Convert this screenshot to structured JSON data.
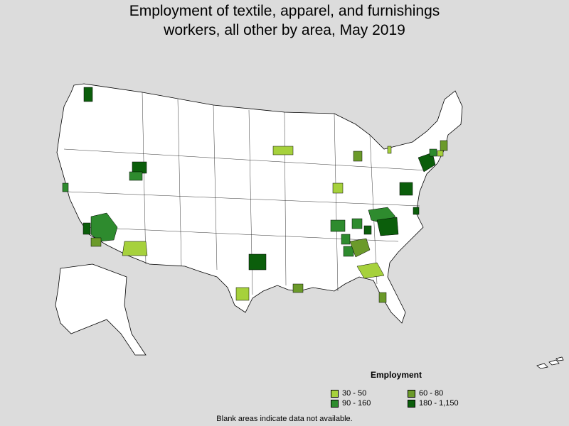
{
  "title_line1": "Employment of textile, apparel, and furnishings",
  "title_line2": "workers, all other by area, May 2019",
  "legend": {
    "title": "Employment",
    "items": [
      {
        "label": "30 - 50",
        "color": "#a6d13c"
      },
      {
        "label": "60 - 80",
        "color": "#6b9a2a"
      },
      {
        "label": "90 - 160",
        "color": "#2e8b2e"
      },
      {
        "label": "180 - 1,150",
        "color": "#0b5e0b"
      }
    ]
  },
  "footnote": "Blank areas indicate data not available.",
  "colors": {
    "background": "#dcdcdc",
    "land": "#ffffff",
    "border": "#000000"
  }
}
